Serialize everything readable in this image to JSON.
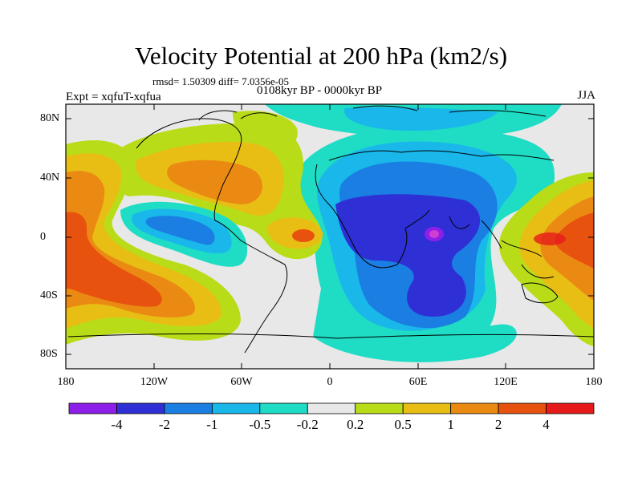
{
  "title": "Velocity Potential at 200 hPa (km2/s)",
  "stats": "rmsd= 1.50309 diff= 7.0356e-05",
  "experiment": "Expt = xqfuT-xqfua",
  "period": "0108kyr BP - 0000kyr BP",
  "season": "JJA",
  "lon_ticks": [
    "180",
    "120W",
    "60W",
    "0",
    "60E",
    "120E",
    "180"
  ],
  "lat_ticks": [
    "80N",
    "40N",
    "0",
    "40S",
    "80S"
  ],
  "colorbar": {
    "labels": [
      "-4",
      "-2",
      "-1",
      "-0.5",
      "-0.2",
      "0.2",
      "0.5",
      "1",
      "2",
      "4"
    ],
    "colors": [
      "#8e1fe8",
      "#2f2fd6",
      "#1a7ee3",
      "#19b7ea",
      "#1fdcc5",
      "#e8e8e8",
      "#b9dc18",
      "#e8be14",
      "#eb8a12",
      "#e8520f",
      "#e61a1a"
    ]
  }
}
